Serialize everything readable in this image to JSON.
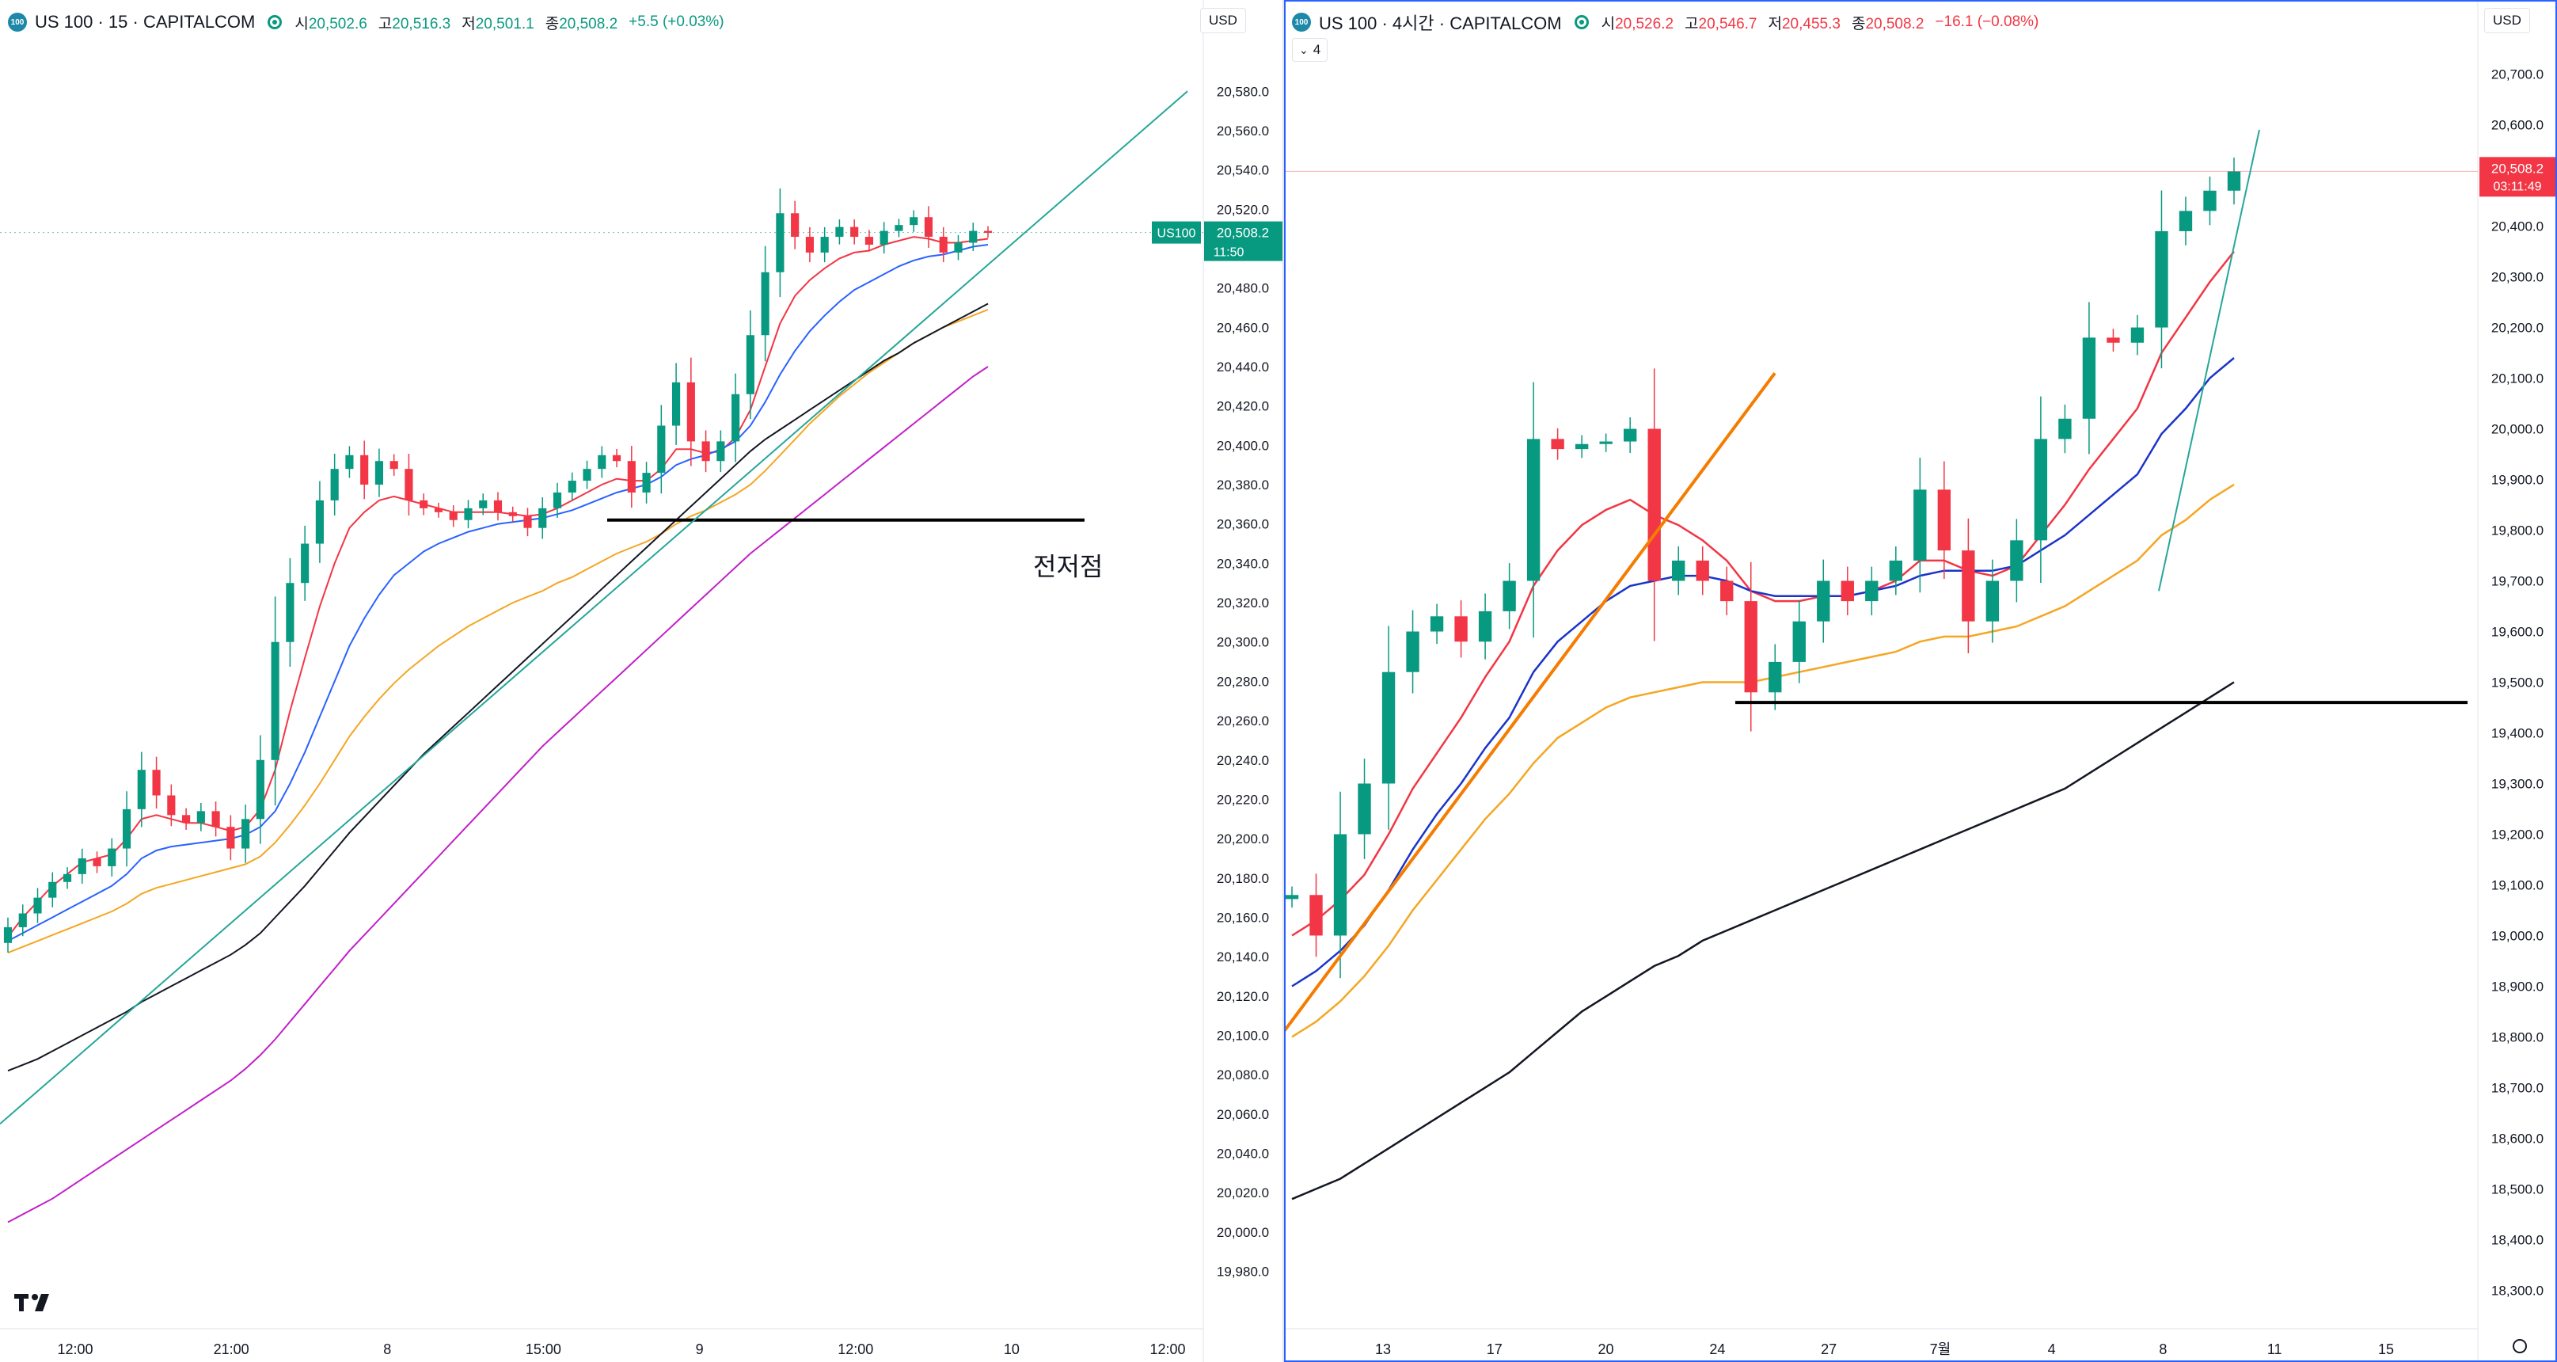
{
  "left": {
    "badge": "100",
    "title": "US 100 · 15 · CAPITALCOM",
    "ohlc": [
      {
        "k": "시",
        "v": "20,502.6"
      },
      {
        "k": "고",
        "v": "20,516.3"
      },
      {
        "k": "저",
        "v": "20,501.1"
      },
      {
        "k": "종",
        "v": "20,508.2"
      }
    ],
    "change": "+5.5 (+0.03%)",
    "currency": "USD",
    "price_tag_label": "US100",
    "price_tag_value": "20,508.2",
    "price_tag_time": "11:50",
    "annotation": "전저점",
    "colors": {
      "up": "#089981",
      "down": "#f23645",
      "ma_red": "#f23645",
      "ma_blue": "#2962ff",
      "ma_orange": "#f5a623",
      "ma_black": "#131722",
      "ma_magenta": "#c11fc7",
      "trend": "#26a69a"
    }
  },
  "right": {
    "badge": "100",
    "title": "US 100 · 4시간 · CAPITALCOM",
    "ohlc": [
      {
        "k": "시",
        "v": "20,526.2"
      },
      {
        "k": "고",
        "v": "20,546.7"
      },
      {
        "k": "저",
        "v": "20,455.3"
      },
      {
        "k": "종",
        "v": "20,508.2"
      }
    ],
    "change": "−16.1 (−0.08%)",
    "currency": "USD",
    "collapse_label": "4",
    "price_tag_value": "20,508.2",
    "price_tag_time": "03:11:49",
    "colors": {
      "up": "#089981",
      "down": "#f23645",
      "ma_red": "#f23645",
      "ma_blue": "#1a34c9",
      "ma_orange": "#f5a623",
      "ma_black": "#131722",
      "trend_orange": "#f57c00",
      "trend_teal": "#26a69a"
    }
  },
  "chart_data": [
    {
      "type": "line",
      "instrument": "US 100",
      "timeframe": "15",
      "x_ticks": [
        "12:00",
        "21:00",
        "8",
        "15:00",
        "9",
        "12:00",
        "10",
        "12:00"
      ],
      "y_ticks": [
        "20,580.0",
        "20,560.0",
        "20,540.0",
        "20,520.0",
        "20,500.0",
        "20,480.0",
        "20,460.0",
        "20,440.0",
        "20,420.0",
        "20,400.0",
        "20,380.0",
        "20,360.0",
        "20,340.0",
        "20,320.0",
        "20,300.0",
        "20,280.0",
        "20,260.0",
        "20,240.0",
        "20,220.0",
        "20,200.0",
        "20,180.0",
        "20,160.0",
        "20,140.0",
        "20,120.0",
        "20,100.0",
        "20,080.0",
        "20,060.0",
        "20,040.0",
        "20,020.0",
        "20,000.0",
        "19,980.0"
      ],
      "ylim": [
        19975,
        20595
      ],
      "last_price": 20508.2,
      "close_series": [
        20155,
        20162,
        20170,
        20178,
        20182,
        20190,
        20186,
        20195,
        20215,
        20235,
        20222,
        20212,
        20208,
        20214,
        20206,
        20195,
        20210,
        20240,
        20300,
        20330,
        20350,
        20372,
        20388,
        20395,
        20380,
        20392,
        20388,
        20372,
        20368,
        20366,
        20362,
        20368,
        20372,
        20366,
        20364,
        20358,
        20368,
        20376,
        20382,
        20388,
        20395,
        20392,
        20376,
        20386,
        20410,
        20432,
        20402,
        20392,
        20402,
        20426,
        20456,
        20488,
        20518,
        20506,
        20498,
        20506,
        20511,
        20506,
        20502,
        20509,
        20512,
        20516,
        20506,
        20498,
        20503,
        20509,
        20508
      ],
      "moving_averages": [
        {
          "color": "#f23645",
          "values": [
            20150,
            20160,
            20168,
            20176,
            20182,
            20188,
            20190,
            20192,
            20200,
            20210,
            20212,
            20210,
            20208,
            20208,
            20206,
            20204,
            20206,
            20215,
            20235,
            20265,
            20292,
            20318,
            20340,
            20358,
            20366,
            20372,
            20374,
            20372,
            20370,
            20368,
            20366,
            20366,
            20366,
            20366,
            20365,
            20364,
            20365,
            20368,
            20372,
            20376,
            20380,
            20383,
            20382,
            20382,
            20388,
            20398,
            20398,
            20396,
            20397,
            20404,
            20418,
            20440,
            20462,
            20476,
            20484,
            20490,
            20495,
            20498,
            20499,
            20502,
            20504,
            20506,
            20505,
            20503,
            20503,
            20504,
            20505
          ]
        },
        {
          "color": "#2962ff",
          "values": [
            20148,
            20152,
            20156,
            20160,
            20164,
            20168,
            20172,
            20176,
            20182,
            20190,
            20194,
            20196,
            20197,
            20198,
            20199,
            20200,
            20202,
            20206,
            20214,
            20228,
            20244,
            20262,
            20280,
            20298,
            20312,
            20324,
            20334,
            20340,
            20346,
            20350,
            20353,
            20356,
            20358,
            20360,
            20361,
            20362,
            20363,
            20365,
            20367,
            20370,
            20373,
            20376,
            20378,
            20380,
            20384,
            20390,
            20393,
            20395,
            20398,
            20402,
            20410,
            20422,
            20436,
            20448,
            20458,
            20466,
            20473,
            20479,
            20483,
            20487,
            20491,
            20494,
            20496,
            20497,
            20499,
            20501,
            20502
          ]
        },
        {
          "color": "#f5a623",
          "values": [
            20142,
            20145,
            20148,
            20151,
            20154,
            20157,
            20160,
            20163,
            20167,
            20172,
            20175,
            20177,
            20179,
            20181,
            20183,
            20185,
            20187,
            20191,
            20198,
            20207,
            20217,
            20228,
            20240,
            20252,
            20262,
            20271,
            20279,
            20286,
            20292,
            20298,
            20303,
            20308,
            20312,
            20316,
            20320,
            20323,
            20326,
            20330,
            20333,
            20337,
            20341,
            20345,
            20348,
            20351,
            20355,
            20360,
            20364,
            20367,
            20371,
            20375,
            20380,
            20387,
            20395,
            20403,
            20411,
            20418,
            20425,
            20431,
            20437,
            20442,
            20447,
            20452,
            20456,
            20460,
            20463,
            20466,
            20469
          ]
        },
        {
          "color": "#131722",
          "values": [
            20082,
            20085,
            20088,
            20092,
            20096,
            20100,
            20104,
            20108,
            20112,
            20117,
            20121,
            20125,
            20129,
            20133,
            20137,
            20141,
            20146,
            20152,
            20160,
            20168,
            20176,
            20185,
            20194,
            20203,
            20211,
            20219,
            20227,
            20235,
            20243,
            20250,
            20257,
            20264,
            20271,
            20278,
            20285,
            20292,
            20299,
            20306,
            20313,
            20320,
            20327,
            20334,
            20341,
            20348,
            20355,
            20362,
            20369,
            20376,
            20383,
            20390,
            20397,
            20403,
            20408,
            20413,
            20418,
            20423,
            20428,
            20433,
            20438,
            20443,
            20447,
            20452,
            20456,
            20460,
            20464,
            20468,
            20472
          ]
        },
        {
          "color": "#c11fc7",
          "values": [
            20005,
            20009,
            20013,
            20017,
            20022,
            20027,
            20032,
            20037,
            20042,
            20047,
            20052,
            20057,
            20062,
            20067,
            20072,
            20077,
            20083,
            20090,
            20098,
            20107,
            20116,
            20125,
            20134,
            20143,
            20151,
            20159,
            20167,
            20175,
            20183,
            20191,
            20199,
            20207,
            20215,
            20223,
            20231,
            20239,
            20247,
            20254,
            20261,
            20268,
            20275,
            20282,
            20289,
            20296,
            20303,
            20310,
            20317,
            20324,
            20331,
            20338,
            20345,
            20351,
            20357,
            20363,
            20369,
            20375,
            20381,
            20387,
            20393,
            20399,
            20405,
            20411,
            20417,
            20423,
            20429,
            20435,
            20440
          ]
        }
      ],
      "horizontal_line": 20362,
      "trend_line": {
        "from": 20055,
        "to": 20580
      }
    },
    {
      "type": "line",
      "instrument": "US 100",
      "timeframe": "4시간",
      "x_ticks": [
        "13",
        "17",
        "20",
        "24",
        "27",
        "7월",
        "4",
        "8",
        "11",
        "15"
      ],
      "y_ticks": [
        "20,700.0",
        "20,600.0",
        "20,500.0",
        "20,400.0",
        "20,300.0",
        "20,200.0",
        "20,100.0",
        "20,000.0",
        "19,900.0",
        "19,800.0",
        "19,700.0",
        "19,600.0",
        "19,500.0",
        "19,400.0",
        "19,300.0",
        "19,200.0",
        "19,100.0",
        "19,000.0",
        "18,900.0",
        "18,800.0",
        "18,700.0",
        "18,600.0",
        "18,500.0",
        "18,400.0",
        "18,300.0"
      ],
      "ylim": [
        18260,
        20740
      ],
      "last_price": 20508.2,
      "close_series": [
        19080,
        19000,
        19200,
        19300,
        19520,
        19600,
        19630,
        19580,
        19640,
        19700,
        19980,
        19960,
        19970,
        19975,
        20000,
        19700,
        19740,
        19700,
        19660,
        19480,
        19540,
        19620,
        19700,
        19660,
        19700,
        19740,
        19880,
        19760,
        19620,
        19700,
        19780,
        19980,
        20020,
        20180,
        20170,
        20200,
        20390,
        20430,
        20470,
        20508
      ],
      "moving_averages": [
        {
          "color": "#f23645",
          "values": [
            19000,
            19030,
            19070,
            19120,
            19200,
            19290,
            19360,
            19430,
            19510,
            19580,
            19690,
            19760,
            19810,
            19840,
            19860,
            19830,
            19810,
            19780,
            19740,
            19680,
            19660,
            19660,
            19670,
            19670,
            19680,
            19700,
            19740,
            19740,
            19720,
            19710,
            19730,
            19790,
            19850,
            19920,
            19980,
            20040,
            20150,
            20220,
            20290,
            20350
          ]
        },
        {
          "color": "#1a34c9",
          "values": [
            18900,
            18930,
            18970,
            19020,
            19090,
            19170,
            19240,
            19300,
            19370,
            19430,
            19520,
            19580,
            19620,
            19660,
            19690,
            19700,
            19710,
            19710,
            19700,
            19680,
            19670,
            19670,
            19670,
            19670,
            19680,
            19690,
            19710,
            19720,
            19720,
            19720,
            19730,
            19760,
            19790,
            19830,
            19870,
            19910,
            19990,
            20040,
            20100,
            20140
          ]
        },
        {
          "color": "#f5a623",
          "values": [
            18800,
            18830,
            18870,
            18920,
            18980,
            19050,
            19110,
            19170,
            19230,
            19280,
            19340,
            19390,
            19420,
            19450,
            19470,
            19480,
            19490,
            19500,
            19500,
            19500,
            19510,
            19520,
            19530,
            19540,
            19550,
            19560,
            19580,
            19590,
            19590,
            19600,
            19610,
            19630,
            19650,
            19680,
            19710,
            19740,
            19790,
            19820,
            19860,
            19890
          ]
        },
        {
          "color": "#131722",
          "values": [
            18480,
            18500,
            18520,
            18550,
            18580,
            18610,
            18640,
            18670,
            18700,
            18730,
            18770,
            18810,
            18850,
            18880,
            18910,
            18940,
            18960,
            18990,
            19010,
            19030,
            19050,
            19070,
            19090,
            19110,
            19130,
            19150,
            19170,
            19190,
            19210,
            19230,
            19250,
            19270,
            19290,
            19320,
            19350,
            19380,
            19410,
            19440,
            19470,
            19500
          ]
        }
      ],
      "horizontal_line": 19460,
      "trend_line_orange": {
        "from": 18850,
        "to": 20000
      },
      "trend_line_teal": {
        "from": 19680,
        "to": 20590
      }
    }
  ]
}
